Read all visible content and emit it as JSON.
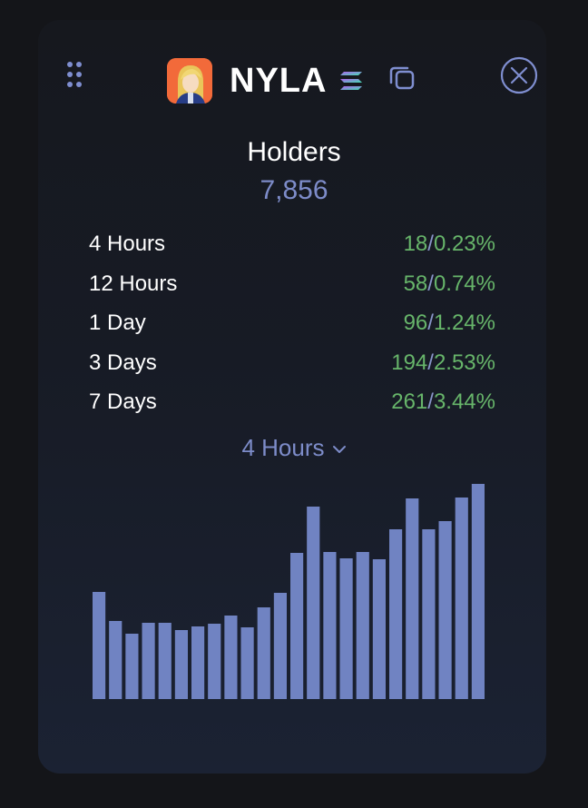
{
  "header": {
    "token_name": "NYLA",
    "icons": {
      "drag": "grip-dots-icon",
      "avatar": "token-avatar",
      "chain": "solana-icon",
      "copy": "copy-icon",
      "close": "close-circle-icon"
    }
  },
  "holders": {
    "title": "Holders",
    "count": "7,856"
  },
  "stats": [
    {
      "label": "4 Hours",
      "count": "18",
      "percent": "0.23%"
    },
    {
      "label": "12 Hours",
      "count": "58",
      "percent": "0.74%"
    },
    {
      "label": "1 Day",
      "count": "96",
      "percent": "1.24%"
    },
    {
      "label": "3 Days",
      "count": "194",
      "percent": "2.53%"
    },
    {
      "label": "7 Days",
      "count": "261",
      "percent": "3.44%"
    }
  ],
  "period_select": {
    "selected": "4 Hours"
  },
  "colors": {
    "accent": "#7d8cc9",
    "positive": "#67b56a",
    "bar": "#7083c2",
    "background": "#141519"
  },
  "chart_data": {
    "type": "bar",
    "values": [
      118,
      86,
      72,
      84,
      84,
      76,
      80,
      83,
      92,
      79,
      101,
      117,
      161,
      212,
      162,
      155,
      162,
      154,
      187,
      221,
      187,
      196,
      222,
      237
    ],
    "ylim": [
      0,
      250
    ],
    "title": "",
    "xlabel": "",
    "ylabel": ""
  }
}
